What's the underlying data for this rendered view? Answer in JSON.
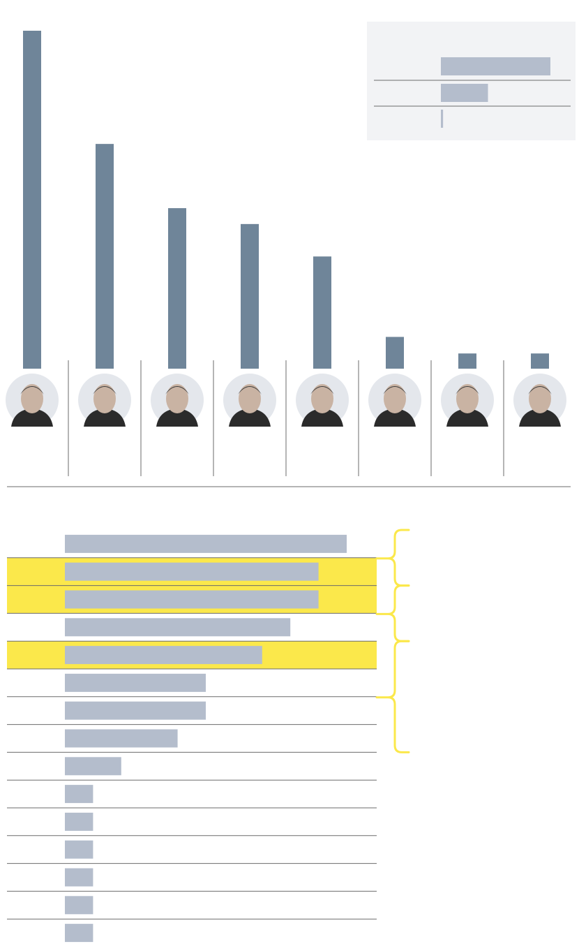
{
  "colors": {
    "column_bar": "#6f8599",
    "hbar": "#b4bdcc",
    "highlight_row": "#fbe84b",
    "bracket": "#fbe84b",
    "legend_bg": "#f2f3f5",
    "rule": "#6b6b6b",
    "photo_bg": "#e4e7ec"
  },
  "chart_data": [
    {
      "type": "bar",
      "orientation": "vertical",
      "categories": [
        "",
        "",
        "",
        "",
        "",
        "",
        "",
        ""
      ],
      "values": [
        100,
        66.5,
        47.5,
        42.8,
        33.2,
        9.4,
        4.5,
        4.5
      ],
      "ylim": [
        0,
        100
      ],
      "grid": false,
      "photos": [
        "portrait-1",
        "portrait-2",
        "portrait-3",
        "portrait-4",
        "portrait-5",
        "portrait-6",
        "portrait-7",
        "portrait-8"
      ]
    },
    {
      "type": "bar",
      "orientation": "horizontal",
      "legend_box": true,
      "categories": [
        "",
        "",
        ""
      ],
      "values": [
        100,
        43,
        2
      ],
      "xlim": [
        0,
        100
      ]
    },
    {
      "type": "bar",
      "orientation": "horizontal",
      "categories": [
        "",
        "",
        "",
        "",
        "",
        "",
        "",
        "",
        "",
        "",
        "",
        "",
        "",
        "",
        ""
      ],
      "values": [
        10,
        9,
        9,
        8,
        7,
        5,
        5,
        4,
        2,
        1,
        1,
        1,
        1,
        1,
        1
      ],
      "xlim": [
        0,
        10
      ],
      "highlighted_rows": [
        1,
        2,
        4
      ],
      "brackets": [
        {
          "from_row": 0,
          "to_row": 1
        },
        {
          "from_row": 2,
          "to_row": 3
        },
        {
          "from_row": 4,
          "to_row": 7
        }
      ]
    }
  ]
}
